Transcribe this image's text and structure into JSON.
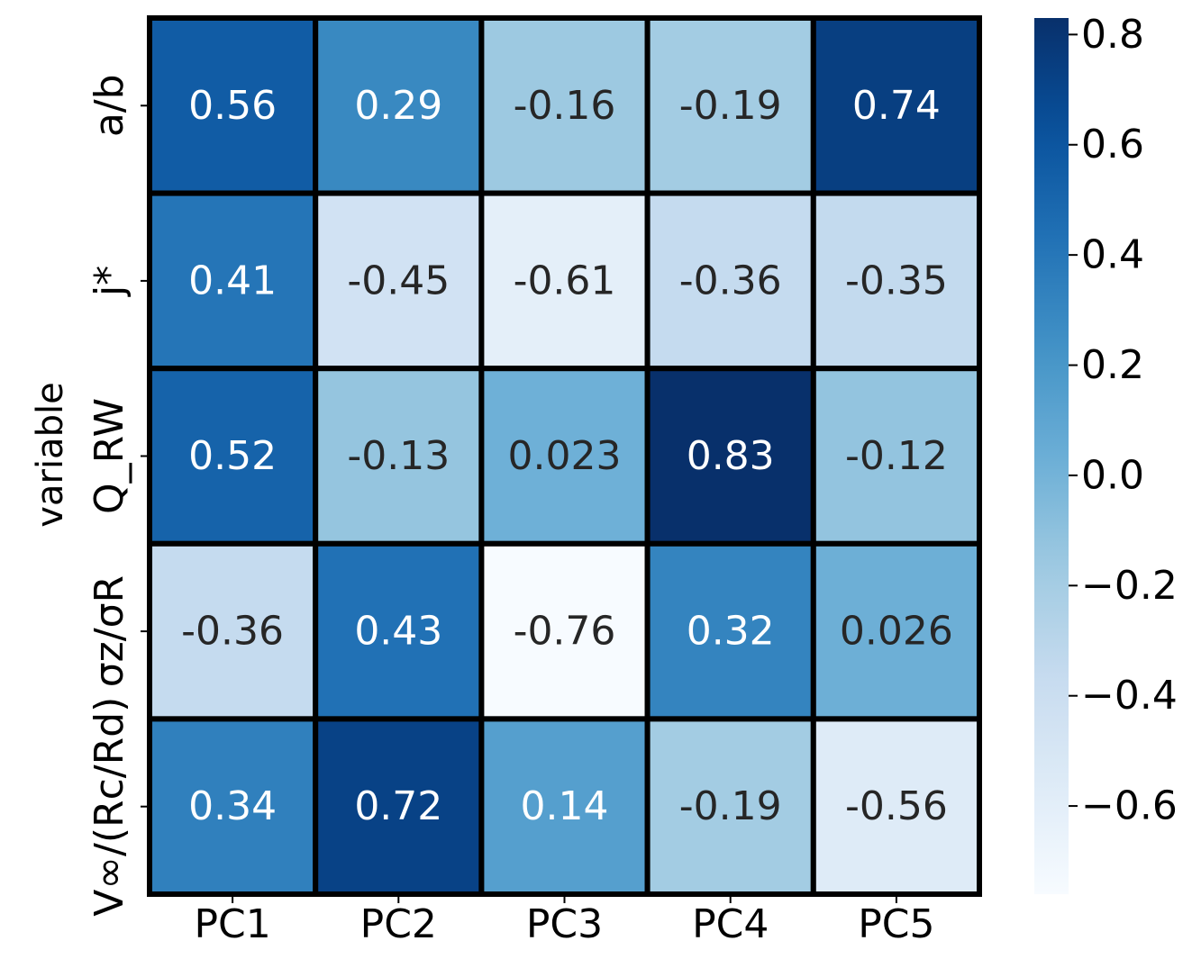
{
  "chart_data": {
    "type": "heatmap",
    "title": "",
    "xlabel": "",
    "ylabel": "variable",
    "x_categories": [
      "PC1",
      "PC2",
      "PC3",
      "PC4",
      "PC5"
    ],
    "y_categories": [
      "a/b",
      "j*",
      "Q_RW",
      "σz/σR",
      "V∞/(Rc/Rd)"
    ],
    "values": [
      [
        0.56,
        0.29,
        -0.16,
        -0.19,
        0.74
      ],
      [
        0.41,
        -0.45,
        -0.61,
        -0.36,
        -0.35
      ],
      [
        0.52,
        -0.13,
        0.023,
        0.83,
        -0.12
      ],
      [
        -0.36,
        0.43,
        -0.76,
        0.32,
        0.026
      ],
      [
        0.34,
        0.72,
        0.14,
        -0.19,
        -0.56
      ]
    ],
    "value_labels": [
      [
        "0.56",
        "0.29",
        "-0.16",
        "-0.19",
        "0.74"
      ],
      [
        "0.41",
        "-0.45",
        "-0.61",
        "-0.36",
        "-0.35"
      ],
      [
        "0.52",
        "-0.13",
        "0.023",
        "0.83",
        "-0.12"
      ],
      [
        "-0.36",
        "0.43",
        "-0.76",
        "0.32",
        "0.026"
      ],
      [
        "0.34",
        "0.72",
        "0.14",
        "-0.19",
        "-0.56"
      ]
    ],
    "colormap": "Blues",
    "vmin": -0.76,
    "vmax": 0.83,
    "colorbar": {
      "ticks": [
        0.8,
        0.6,
        0.4,
        0.2,
        0.0,
        -0.2,
        -0.4,
        -0.6
      ],
      "tick_labels": [
        "0.8",
        "0.6",
        "0.4",
        "0.2",
        "0.0",
        "−0.2",
        "−0.4",
        "−0.6"
      ]
    },
    "grid": false,
    "cell_border_color": "#000000"
  }
}
